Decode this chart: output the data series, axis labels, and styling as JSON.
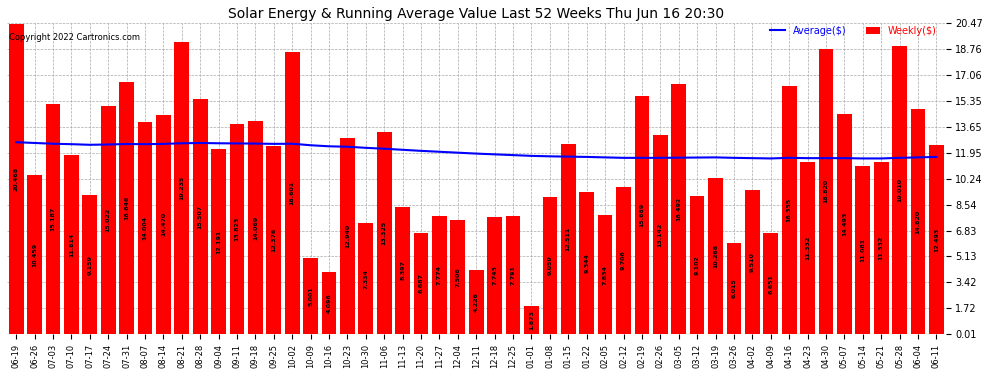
{
  "title": "Solar Energy & Running Average Value Last 52 Weeks Thu Jun 16 20:30",
  "copyright": "Copyright 2022 Cartronics.com",
  "bar_color": "#FF0000",
  "avg_line_color": "#0000FF",
  "background_color": "#FFFFFF",
  "grid_color": "#AAAAAA",
  "categories": [
    "06-19",
    "06-26",
    "07-03",
    "07-10",
    "07-17",
    "07-24",
    "07-31",
    "08-07",
    "08-14",
    "08-21",
    "08-28",
    "09-04",
    "09-11",
    "09-18",
    "09-25",
    "10-02",
    "10-09",
    "10-16",
    "10-23",
    "10-30",
    "11-06",
    "11-13",
    "11-20",
    "11-27",
    "12-04",
    "12-11",
    "12-18",
    "12-25",
    "01-01",
    "01-08",
    "01-15",
    "01-22",
    "02-05",
    "02-12",
    "02-19",
    "02-26",
    "03-05",
    "03-12",
    "03-19",
    "03-26",
    "04-02",
    "04-09",
    "04-16",
    "04-23",
    "04-30",
    "05-07",
    "05-14",
    "05-21",
    "05-28",
    "06-04",
    "06-11"
  ],
  "weekly_values": [
    20.468,
    10.459,
    15.187,
    11.814,
    9.159,
    15.022,
    16.646,
    14.004,
    14.47,
    19.235,
    15.507,
    12.191,
    13.823,
    14.069,
    12.376,
    18.601,
    5.001,
    4.096,
    12.94,
    7.334,
    13.325,
    8.397,
    6.687,
    7.774,
    7.506,
    4.226,
    7.743,
    7.791,
    1.873,
    9.059,
    12.511,
    9.344,
    7.834,
    9.706,
    15.689,
    13.142,
    16.492,
    9.102,
    10.268,
    6.015,
    9.51,
    6.651,
    16.355,
    11.332,
    18.82,
    14.493,
    11.081,
    11.332,
    19.01,
    14.82,
    12.493
  ],
  "avg_values": [
    12.65,
    12.6,
    12.55,
    12.52,
    12.48,
    12.5,
    12.53,
    12.52,
    12.54,
    12.58,
    12.6,
    12.58,
    12.57,
    12.56,
    12.54,
    12.55,
    12.45,
    12.38,
    12.35,
    12.28,
    12.22,
    12.15,
    12.08,
    12.02,
    11.96,
    11.9,
    11.85,
    11.8,
    11.75,
    11.72,
    11.7,
    11.68,
    11.65,
    11.62,
    11.62,
    11.62,
    11.63,
    11.64,
    11.65,
    11.62,
    11.6,
    11.58,
    11.62,
    11.6,
    11.6,
    11.6,
    11.58,
    11.58,
    11.62,
    11.65,
    11.68
  ],
  "ylim": [
    0.01,
    20.47
  ],
  "yticks": [
    0.01,
    1.72,
    3.42,
    5.13,
    6.83,
    8.54,
    10.24,
    11.95,
    13.65,
    15.35,
    17.06,
    18.76,
    20.47
  ],
  "legend_avg": "Average($)",
  "legend_weekly": "Weekly($)"
}
